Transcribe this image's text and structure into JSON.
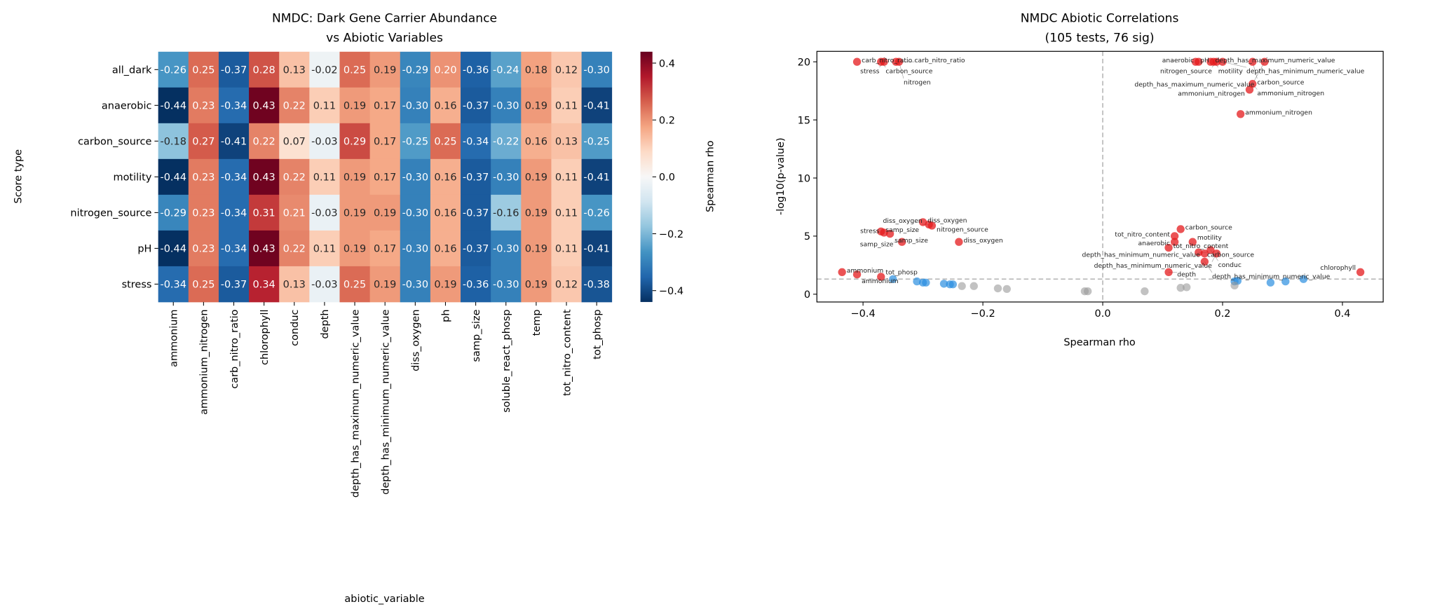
{
  "chart_data": [
    {
      "type": "heatmap",
      "title": "NMDC: Dark Gene Carrier Abundance\nvs Abiotic Variables",
      "xlabel": "abiotic_variable",
      "ylabel": "Score type",
      "colorbar_label": "Spearman rho",
      "colormap": "RdBu_r",
      "vlim": [
        -0.44,
        0.44
      ],
      "colorbar_ticks": [
        -0.4,
        -0.2,
        0.0,
        0.2,
        0.4
      ],
      "columns": [
        "ammonium",
        "ammonium_nitrogen",
        "carb_nitro_ratio",
        "chlorophyll",
        "conduc",
        "depth",
        "depth_has_maximum_numeric_value",
        "depth_has_minimum_numeric_value",
        "diss_oxygen",
        "ph",
        "samp_size",
        "soluble_react_phosp",
        "temp",
        "tot_nitro_content",
        "tot_phosp"
      ],
      "rows": [
        "all_dark",
        "anaerobic",
        "carbon_source",
        "motility",
        "nitrogen_source",
        "pH",
        "stress"
      ],
      "values": [
        [
          -0.26,
          0.25,
          -0.37,
          0.28,
          0.13,
          -0.02,
          0.25,
          0.19,
          -0.29,
          0.2,
          -0.36,
          -0.24,
          0.18,
          0.12,
          -0.3
        ],
        [
          -0.44,
          0.23,
          -0.34,
          0.43,
          0.22,
          0.11,
          0.19,
          0.17,
          -0.3,
          0.16,
          -0.37,
          -0.3,
          0.19,
          0.11,
          -0.41
        ],
        [
          -0.18,
          0.27,
          -0.41,
          0.22,
          0.07,
          -0.03,
          0.29,
          0.17,
          -0.25,
          0.25,
          -0.34,
          -0.22,
          0.16,
          0.13,
          -0.25
        ],
        [
          -0.44,
          0.23,
          -0.34,
          0.43,
          0.22,
          0.11,
          0.19,
          0.17,
          -0.3,
          0.16,
          -0.37,
          -0.3,
          0.19,
          0.11,
          -0.41
        ],
        [
          -0.29,
          0.23,
          -0.34,
          0.31,
          0.21,
          -0.03,
          0.19,
          0.19,
          -0.3,
          0.16,
          -0.37,
          -0.16,
          0.19,
          0.11,
          -0.26
        ],
        [
          -0.44,
          0.23,
          -0.34,
          0.43,
          0.22,
          0.11,
          0.19,
          0.17,
          -0.3,
          0.16,
          -0.37,
          -0.3,
          0.19,
          0.11,
          -0.41
        ],
        [
          -0.34,
          0.25,
          -0.37,
          0.34,
          0.13,
          -0.03,
          0.25,
          0.19,
          -0.3,
          0.19,
          -0.36,
          -0.3,
          0.19,
          0.12,
          -0.38
        ]
      ]
    },
    {
      "type": "scatter",
      "title": "NMDC Abiotic Correlations\n(105 tests, 76 sig)",
      "xlabel": "Spearman rho",
      "ylabel": "-log10(p-value)",
      "xlim": [
        -0.477,
        0.468
      ],
      "ylim": [
        -0.67,
        20.9
      ],
      "xticks": [
        -0.4,
        -0.2,
        0.0,
        0.2,
        0.4
      ],
      "xtick_labels": [
        "−0.4",
        "−0.2",
        "0.0",
        "0.2",
        "0.4"
      ],
      "yticks": [
        0,
        5,
        10,
        15,
        20
      ],
      "reference_lines": {
        "x": 0.0,
        "y": 1.3
      },
      "colors": {
        "significant": "#e41a1c",
        "moderate": "#2b8ee0",
        "nonsignificant": "#999999",
        "refline": "#bbbbbb"
      },
      "points": [
        {
          "x": -0.41,
          "y": 20,
          "group": "significant",
          "label": "carb_nitro_ratio"
        },
        {
          "x": -0.37,
          "y": 20,
          "group": "significant",
          "label": "carbon_source"
        },
        {
          "x": -0.365,
          "y": 20,
          "group": "significant",
          "label": "stress"
        },
        {
          "x": -0.345,
          "y": 20,
          "group": "significant",
          "label": "carb_nitro_ratio"
        },
        {
          "x": -0.34,
          "y": 20,
          "group": "significant",
          "label": "nitrogen"
        },
        {
          "x": 0.155,
          "y": 20,
          "group": "significant",
          "label": "pH"
        },
        {
          "x": 0.16,
          "y": 20,
          "group": "significant",
          "label": "anaerobic"
        },
        {
          "x": 0.18,
          "y": 20,
          "group": "significant",
          "label": "depth_has_maximum_numeric_value"
        },
        {
          "x": 0.185,
          "y": 20,
          "group": "significant",
          "label": "motility"
        },
        {
          "x": 0.19,
          "y": 20,
          "group": "significant",
          "label": "nitrogen_source"
        },
        {
          "x": 0.2,
          "y": 20,
          "group": "significant",
          "label": "depth_has_minimum_numeric_value"
        },
        {
          "x": 0.25,
          "y": 20,
          "group": "significant",
          "label": "carbon_source"
        },
        {
          "x": 0.27,
          "y": 20,
          "group": "significant",
          "label": "depth_has_maximum_numeric_value"
        },
        {
          "x": 0.25,
          "y": 18.1,
          "group": "significant",
          "label": "ammonium_nitrogen"
        },
        {
          "x": 0.245,
          "y": 17.6,
          "group": "significant",
          "label": "ammonium_nitrogen"
        },
        {
          "x": 0.23,
          "y": 15.5,
          "group": "significant",
          "label": "ammonium_nitrogen"
        },
        {
          "x": -0.37,
          "y": 5.4,
          "group": "significant",
          "label": "samp_size"
        },
        {
          "x": -0.365,
          "y": 5.3,
          "group": "significant",
          "label": "stress"
        },
        {
          "x": -0.355,
          "y": 5.2,
          "group": "significant",
          "label": "samp_size"
        },
        {
          "x": -0.335,
          "y": 4.5,
          "group": "significant",
          "label": "samp_size"
        },
        {
          "x": -0.3,
          "y": 6.2,
          "group": "significant",
          "label": "diss_oxygen"
        },
        {
          "x": -0.29,
          "y": 6.0,
          "group": "significant",
          "label": "diss_oxygen"
        },
        {
          "x": -0.285,
          "y": 5.9,
          "group": "significant",
          "label": "nitrogen_source"
        },
        {
          "x": -0.24,
          "y": 4.5,
          "group": "significant",
          "label": "diss_oxygen"
        },
        {
          "x": 0.13,
          "y": 5.6,
          "group": "significant",
          "label": "carbon_source"
        },
        {
          "x": 0.12,
          "y": 5.0,
          "group": "significant",
          "label": "tot_nitro_content"
        },
        {
          "x": 0.11,
          "y": 4.0,
          "group": "significant",
          "label": "tot_nitro_content"
        },
        {
          "x": 0.12,
          "y": 4.5,
          "group": "significant",
          "label": "anaerobic"
        },
        {
          "x": 0.15,
          "y": 4.5,
          "group": "significant",
          "label": "motility"
        },
        {
          "x": 0.16,
          "y": 3.6,
          "group": "significant",
          "label": "carbon_source"
        },
        {
          "x": 0.17,
          "y": 3.5,
          "group": "significant",
          "label": "depth_has_minimum_numeric_value"
        },
        {
          "x": 0.18,
          "y": 3.8,
          "group": "significant",
          "label": "conduc"
        },
        {
          "x": 0.19,
          "y": 3.5,
          "group": "significant",
          "label": "depth_has_minimum_numeric_value"
        },
        {
          "x": 0.17,
          "y": 2.8,
          "group": "significant",
          "label": "depth_has_minimum_numeric_value"
        },
        {
          "x": 0.11,
          "y": 1.9,
          "group": "significant",
          "label": "depth"
        },
        {
          "x": 0.43,
          "y": 1.9,
          "group": "significant",
          "label": "chlorophyll"
        },
        {
          "x": -0.435,
          "y": 1.9,
          "group": "significant",
          "label": "ammonium"
        },
        {
          "x": -0.41,
          "y": 1.7,
          "group": "significant",
          "label": "ammonium"
        },
        {
          "x": -0.37,
          "y": 1.5,
          "group": "significant",
          "label": "tot_phosp"
        },
        {
          "x": -0.35,
          "y": 1.3,
          "group": "moderate",
          "label": ""
        },
        {
          "x": -0.31,
          "y": 1.1,
          "group": "moderate",
          "label": ""
        },
        {
          "x": -0.3,
          "y": 1.0,
          "group": "moderate",
          "label": ""
        },
        {
          "x": -0.295,
          "y": 1.0,
          "group": "moderate",
          "label": ""
        },
        {
          "x": -0.265,
          "y": 0.9,
          "group": "moderate",
          "label": ""
        },
        {
          "x": -0.255,
          "y": 0.85,
          "group": "moderate",
          "label": ""
        },
        {
          "x": -0.25,
          "y": 0.85,
          "group": "moderate",
          "label": ""
        },
        {
          "x": 0.22,
          "y": 1.1,
          "group": "moderate",
          "label": ""
        },
        {
          "x": 0.225,
          "y": 1.15,
          "group": "moderate",
          "label": ""
        },
        {
          "x": 0.28,
          "y": 1.0,
          "group": "moderate",
          "label": ""
        },
        {
          "x": 0.305,
          "y": 1.1,
          "group": "moderate",
          "label": ""
        },
        {
          "x": 0.335,
          "y": 1.3,
          "group": "moderate",
          "label": ""
        },
        {
          "x": -0.235,
          "y": 0.7,
          "group": "nonsignificant",
          "label": ""
        },
        {
          "x": -0.215,
          "y": 0.7,
          "group": "nonsignificant",
          "label": ""
        },
        {
          "x": -0.175,
          "y": 0.5,
          "group": "nonsignificant",
          "label": ""
        },
        {
          "x": -0.16,
          "y": 0.45,
          "group": "nonsignificant",
          "label": ""
        },
        {
          "x": -0.03,
          "y": 0.25,
          "group": "nonsignificant",
          "label": ""
        },
        {
          "x": -0.025,
          "y": 0.25,
          "group": "nonsignificant",
          "label": ""
        },
        {
          "x": 0.07,
          "y": 0.25,
          "group": "nonsignificant",
          "label": ""
        },
        {
          "x": 0.13,
          "y": 0.55,
          "group": "nonsignificant",
          "label": ""
        },
        {
          "x": 0.14,
          "y": 0.6,
          "group": "nonsignificant",
          "label": ""
        },
        {
          "x": 0.22,
          "y": 0.75,
          "group": "nonsignificant",
          "label": ""
        }
      ]
    }
  ]
}
